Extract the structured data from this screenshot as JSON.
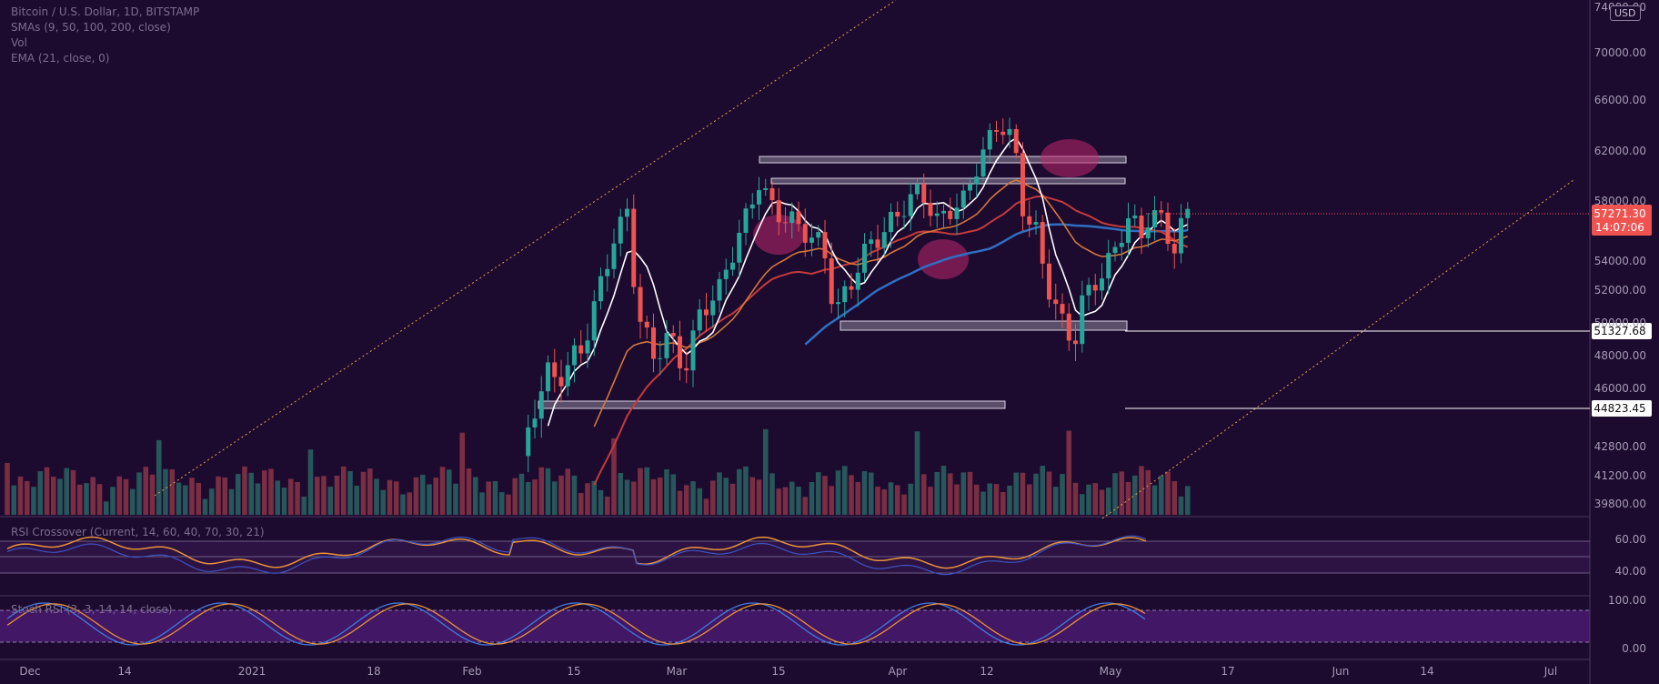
{
  "legend": {
    "symbol_line": "Bitcoin / U.S. Dollar, 1D, BITSTAMP",
    "smas_line": "SMAs (9, 50, 100, 200, close)",
    "vol_line": "Vol",
    "ema_line": "EMA (21, close, 0)",
    "rsi_line": "RSI Crossover (Current, 14, 60, 40, 70, 30, 21)",
    "stoch_line": "Stoch RSI (3, 3, 14, 14, close)"
  },
  "currency_badge": "USD",
  "chart_data": {
    "type": "candlestick",
    "price_axis": {
      "ticks": [
        74000,
        70000,
        66000,
        62000,
        58000,
        54000,
        52000,
        50000,
        48000,
        46000,
        42800,
        41200,
        39800
      ],
      "tick_labels": [
        "74000.00",
        "70000.00",
        "66000.00",
        "62000.00",
        "58000.00",
        "54000.00",
        "52000.00",
        "50000.00",
        "48000.00",
        "46000.00",
        "42800.00",
        "41200.00",
        "39800.00"
      ]
    },
    "x_axis": {
      "tick_labels": [
        "Dec",
        "14",
        "2021",
        "18",
        "Feb",
        "15",
        "Mar",
        "15",
        "Apr",
        "12",
        "May",
        "17",
        "Jun",
        "14",
        "Jul"
      ]
    },
    "current_price": {
      "value": 57271.3,
      "label": "57271.30",
      "countdown": "14:07:06"
    },
    "horizontal_levels": [
      {
        "value": 51327.68,
        "label": "51327.68"
      },
      {
        "value": 44823.45,
        "label": "44823.45"
      }
    ],
    "rsi_axis": {
      "tick_labels": [
        "60.00",
        "40.00"
      ]
    },
    "stoch_axis": {
      "tick_labels": [
        "100.00",
        "0.00"
      ]
    },
    "colors": {
      "up": "#26a69a",
      "down": "#ef5350",
      "sma9": "#ffffff",
      "ema21": "#d4773a",
      "sma50": "#c43b3b",
      "sma100": "#2e6fc4"
    }
  }
}
